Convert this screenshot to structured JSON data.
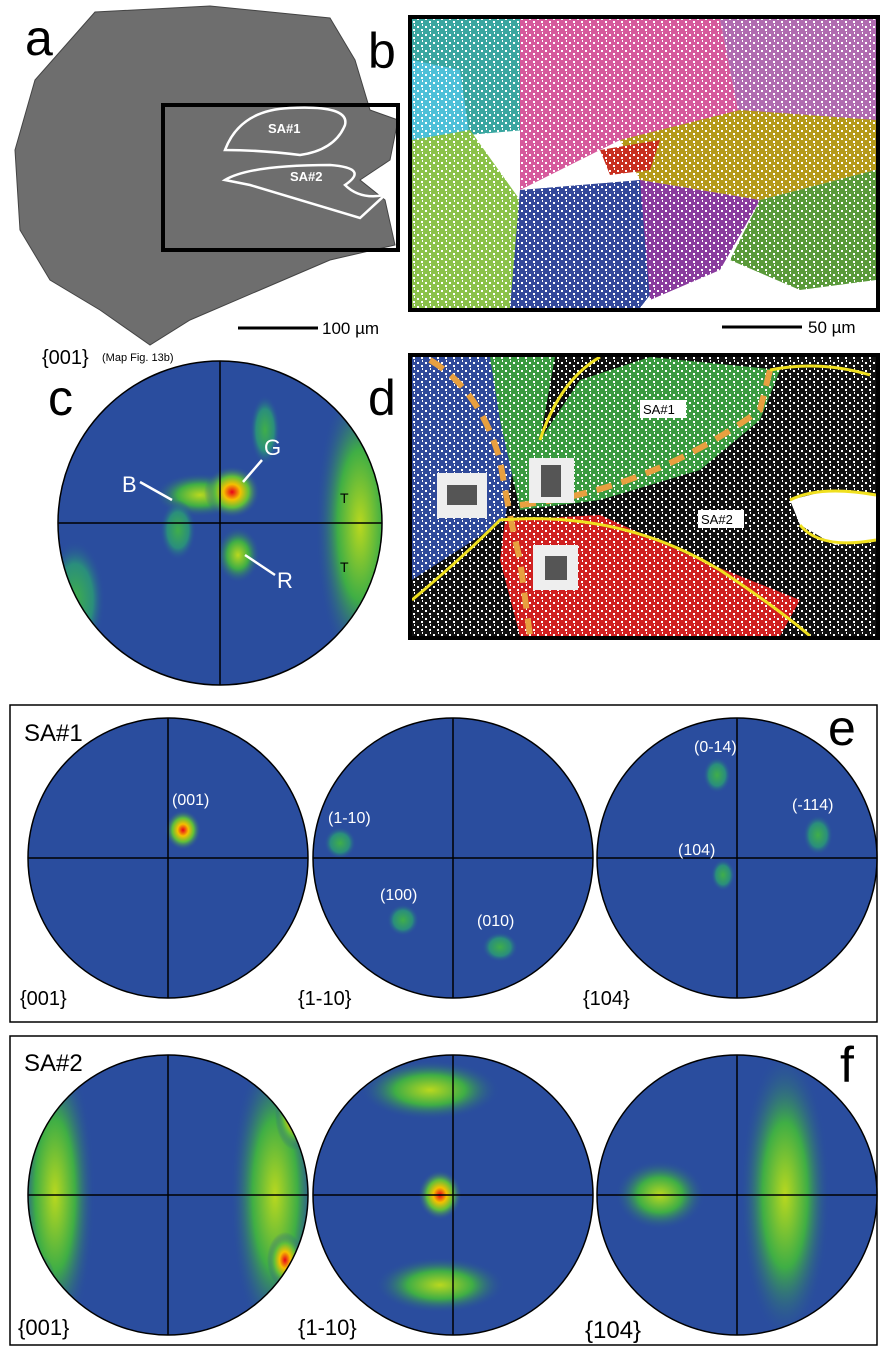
{
  "panel_a": {
    "label": "a",
    "regions": [
      "SA#1",
      "SA#2"
    ],
    "scale_bar": "100 µm"
  },
  "panel_b": {
    "label": "b",
    "scale_bar": "50 µm"
  },
  "panel_c": {
    "label": "c",
    "plane": "{001}",
    "note": "(Map Fig. 13b)",
    "poles": [
      "B",
      "G",
      "R",
      "T",
      "T"
    ]
  },
  "panel_d": {
    "label": "d",
    "regions": [
      "SA#1",
      "SA#2"
    ]
  },
  "panel_e": {
    "label": "e",
    "title": "SA#1",
    "figures": [
      {
        "plane": "{001}",
        "poles": [
          "(001)"
        ]
      },
      {
        "plane": "{1-10}",
        "poles": [
          "(1-10)",
          "(100)",
          "(010)"
        ]
      },
      {
        "plane": "{104}",
        "poles": [
          "(0-14)",
          "(-114)",
          "(104)"
        ]
      }
    ]
  },
  "panel_f": {
    "label": "f",
    "title": "SA#2",
    "figures": [
      {
        "plane": "{001}"
      },
      {
        "plane": "{1-10}"
      },
      {
        "plane": "{104}"
      }
    ]
  }
}
